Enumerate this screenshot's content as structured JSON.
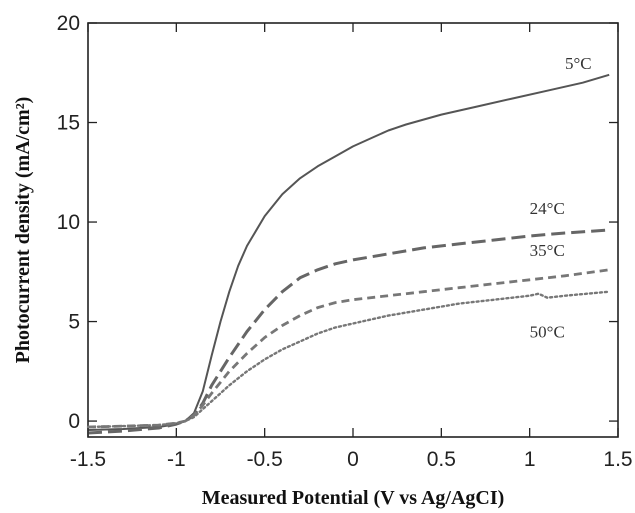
{
  "chart_data": {
    "type": "line",
    "title": "",
    "xlabel": "Measured Potential (V vs Ag/AgCI)",
    "ylabel": "Photocurrent density (mA/cm²)",
    "xlim": [
      -1.5,
      1.5
    ],
    "ylim": [
      -0.8,
      20
    ],
    "xticks": [
      -1.5,
      -1,
      -0.5,
      0,
      0.5,
      1,
      1.5
    ],
    "xtick_labels": [
      "-1.5",
      "-1",
      "-0.5",
      "0",
      "0.5",
      "1",
      "1.5"
    ],
    "yticks": [
      0,
      5,
      10,
      15,
      20
    ],
    "ytick_labels": [
      "0",
      "5",
      "10",
      "15",
      "20"
    ],
    "grid": false,
    "series": [
      {
        "name": "5°C",
        "style": "solid",
        "color": "#555555",
        "x": [
          -1.5,
          -1.3,
          -1.1,
          -1.0,
          -0.95,
          -0.9,
          -0.85,
          -0.8,
          -0.75,
          -0.7,
          -0.65,
          -0.6,
          -0.5,
          -0.4,
          -0.3,
          -0.2,
          -0.1,
          0.0,
          0.1,
          0.2,
          0.3,
          0.5,
          0.7,
          0.9,
          1.1,
          1.3,
          1.45
        ],
        "y": [
          -0.45,
          -0.4,
          -0.3,
          -0.15,
          0.0,
          0.4,
          1.5,
          3.3,
          5.0,
          6.5,
          7.8,
          8.8,
          10.3,
          11.4,
          12.2,
          12.8,
          13.3,
          13.8,
          14.2,
          14.6,
          14.9,
          15.4,
          15.8,
          16.2,
          16.6,
          17.0,
          17.4
        ]
      },
      {
        "name": "24°C",
        "style": "dash-long",
        "color": "#666666",
        "x": [
          -1.5,
          -1.3,
          -1.1,
          -1.0,
          -0.95,
          -0.9,
          -0.85,
          -0.8,
          -0.7,
          -0.6,
          -0.5,
          -0.4,
          -0.3,
          -0.2,
          -0.1,
          0.0,
          0.2,
          0.4,
          0.6,
          0.8,
          1.0,
          1.2,
          1.45
        ],
        "y": [
          -0.6,
          -0.5,
          -0.35,
          -0.15,
          0.0,
          0.3,
          0.9,
          1.8,
          3.2,
          4.5,
          5.6,
          6.5,
          7.2,
          7.6,
          7.9,
          8.1,
          8.4,
          8.7,
          8.9,
          9.1,
          9.3,
          9.45,
          9.6
        ]
      },
      {
        "name": "35°C",
        "style": "dash-short",
        "color": "#777777",
        "x": [
          -1.5,
          -1.3,
          -1.1,
          -1.0,
          -0.95,
          -0.9,
          -0.85,
          -0.8,
          -0.7,
          -0.6,
          -0.5,
          -0.4,
          -0.3,
          -0.2,
          -0.1,
          0.0,
          0.2,
          0.4,
          0.6,
          0.8,
          1.0,
          1.2,
          1.45
        ],
        "y": [
          -0.3,
          -0.25,
          -0.2,
          -0.1,
          0.0,
          0.3,
          0.8,
          1.4,
          2.5,
          3.4,
          4.2,
          4.8,
          5.3,
          5.7,
          5.95,
          6.1,
          6.3,
          6.5,
          6.7,
          6.9,
          7.1,
          7.3,
          7.6
        ]
      },
      {
        "name": "50°C",
        "style": "dotted",
        "color": "#777777",
        "x": [
          -1.5,
          -1.3,
          -1.1,
          -1.0,
          -0.95,
          -0.9,
          -0.85,
          -0.8,
          -0.7,
          -0.6,
          -0.5,
          -0.4,
          -0.3,
          -0.2,
          -0.1,
          0.0,
          0.2,
          0.4,
          0.6,
          0.8,
          1.0,
          1.05,
          1.1,
          1.2,
          1.45
        ],
        "y": [
          -0.3,
          -0.25,
          -0.2,
          -0.1,
          0.0,
          0.2,
          0.6,
          1.0,
          1.8,
          2.5,
          3.1,
          3.6,
          4.0,
          4.4,
          4.7,
          4.9,
          5.3,
          5.6,
          5.9,
          6.1,
          6.3,
          6.4,
          6.2,
          6.3,
          6.5
        ]
      }
    ],
    "annotations": [
      {
        "text": "5°C",
        "x": 1.2,
        "y": 17.7
      },
      {
        "text": "24°C",
        "x": 1.0,
        "y": 10.4
      },
      {
        "text": "35°C",
        "x": 1.0,
        "y": 8.3
      },
      {
        "text": "50°C",
        "x": 1.0,
        "y": 4.2
      }
    ]
  }
}
